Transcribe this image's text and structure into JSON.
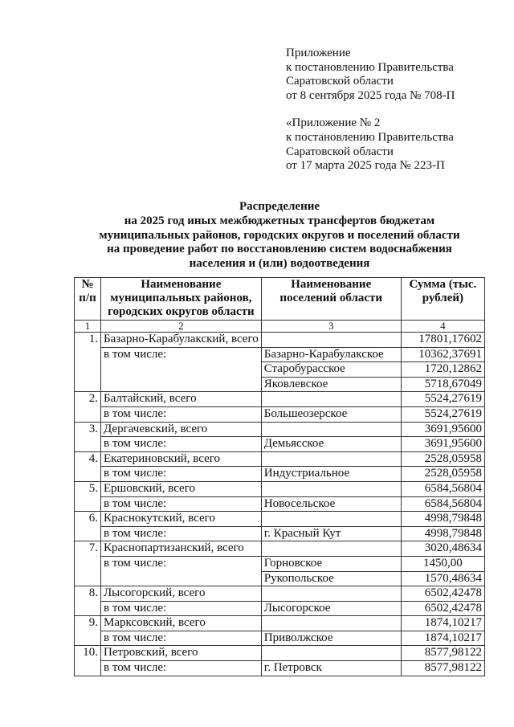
{
  "appendix": {
    "lines1": [
      "Приложение",
      "к постановлению Правительства",
      "Саратовской области",
      "от 8 сентября 2025 года № 708-П"
    ],
    "lines2": [
      "«Приложение № 2",
      "к постановлению Правительства",
      "Саратовской области",
      "от 17 марта 2025 года № 223-П"
    ]
  },
  "title": [
    "Распределение",
    "на 2025 год иных межбюджетных трансфертов бюджетам",
    "муниципальных районов, городских округов и поселений области",
    "на проведение работ по восстановлению систем водоснабжения",
    "населения и (или) водоотведения"
  ],
  "table": {
    "headers": [
      "№ п/п",
      "Наименование муниципальных районов, городских округов области",
      "Наименование поселений области",
      "Сумма (тыс. рублей)"
    ],
    "index_row": [
      "1",
      "2",
      "3",
      "4"
    ],
    "including_label": "в том числе:",
    "groups": [
      {
        "num": "1.",
        "district": "Базарно-Карабулакский, всего",
        "total": "17801,17602",
        "settlements": [
          [
            "Базарно-Карабулакское",
            "10362,37691"
          ],
          [
            "Старобурасское",
            "1720,12862"
          ],
          [
            "Яковлевское",
            "5718,67049"
          ]
        ]
      },
      {
        "num": "2.",
        "district": "Балтайский, всего",
        "total": "5524,27619",
        "settlements": [
          [
            "Большеозерское",
            "5524,27619"
          ]
        ]
      },
      {
        "num": "3.",
        "district": "Дергачевский, всего",
        "total": "3691,95600",
        "settlements": [
          [
            "Демьясское",
            "3691,95600"
          ]
        ]
      },
      {
        "num": "4.",
        "district": "Екатериновский, всего",
        "total": "2528,05958",
        "settlements": [
          [
            "Индустриальное",
            "2528,05958"
          ]
        ]
      },
      {
        "num": "5.",
        "district": "Ершовский, всего",
        "total": "6584,56804",
        "settlements": [
          [
            "Новосельское",
            "6584,56804"
          ]
        ]
      },
      {
        "num": "6.",
        "district": "Краснокутский, всего",
        "total": "4998,79848",
        "settlements": [
          [
            "г. Красный Кут",
            "4998,79848"
          ]
        ]
      },
      {
        "num": "7.",
        "district": "Краснопартизанский, всего",
        "total": "3020,48634",
        "settlements": [
          [
            "Горновское",
            "1450,00"
          ],
          [
            "Рукопольское",
            "1570,48634"
          ]
        ]
      },
      {
        "num": "8.",
        "district": "Лысогорский, всего",
        "total": "6502,42478",
        "settlements": [
          [
            "Лысогорское",
            "6502,42478"
          ]
        ]
      },
      {
        "num": "9.",
        "district": "Марксовский, всего",
        "total": "1874,10217",
        "settlements": [
          [
            "Приволжское",
            "1874,10217"
          ]
        ]
      },
      {
        "num": "10.",
        "district": "Петровский, всего",
        "total": "8577,98122",
        "settlements": [
          [
            "г. Петровск",
            "8577,98122"
          ]
        ]
      }
    ]
  }
}
